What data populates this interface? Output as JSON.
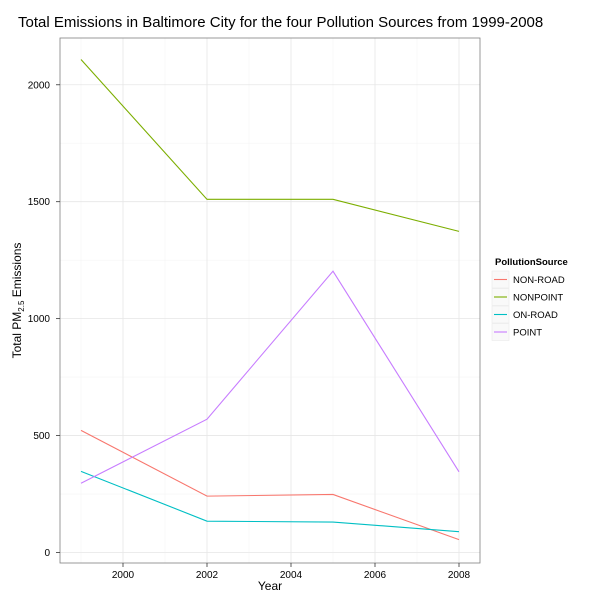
{
  "chart_data": {
    "type": "line",
    "title": "Total Emissions in Baltimore City for the four Pollution Sources from 1999-2008",
    "xlabel": "Year",
    "ylabel": {
      "prefix": "Total PM",
      "subscript": "2.5",
      "suffix": " Emissions"
    },
    "x": [
      1999,
      2002,
      2005,
      2008
    ],
    "xlim": [
      1998.5,
      2008.5
    ],
    "ylim": [
      -45,
      2200
    ],
    "xticks": [
      2000,
      2002,
      2004,
      2006,
      2008
    ],
    "yticks": [
      0,
      500,
      1000,
      1500,
      2000
    ],
    "grid": true,
    "legend": {
      "title": "PollutionSource",
      "position": "right"
    },
    "series": [
      {
        "name": "NON-ROAD",
        "color": "#F8766D",
        "values": [
          522,
          241,
          248,
          55
        ]
      },
      {
        "name": "NONPOINT",
        "color": "#7CAE00",
        "values": [
          2108,
          1510,
          1510,
          1373
        ]
      },
      {
        "name": "ON-ROAD",
        "color": "#00BFC4",
        "values": [
          347,
          134,
          130,
          89
        ]
      },
      {
        "name": "POINT",
        "color": "#C77CFF",
        "values": [
          296,
          570,
          1203,
          345
        ]
      }
    ]
  }
}
